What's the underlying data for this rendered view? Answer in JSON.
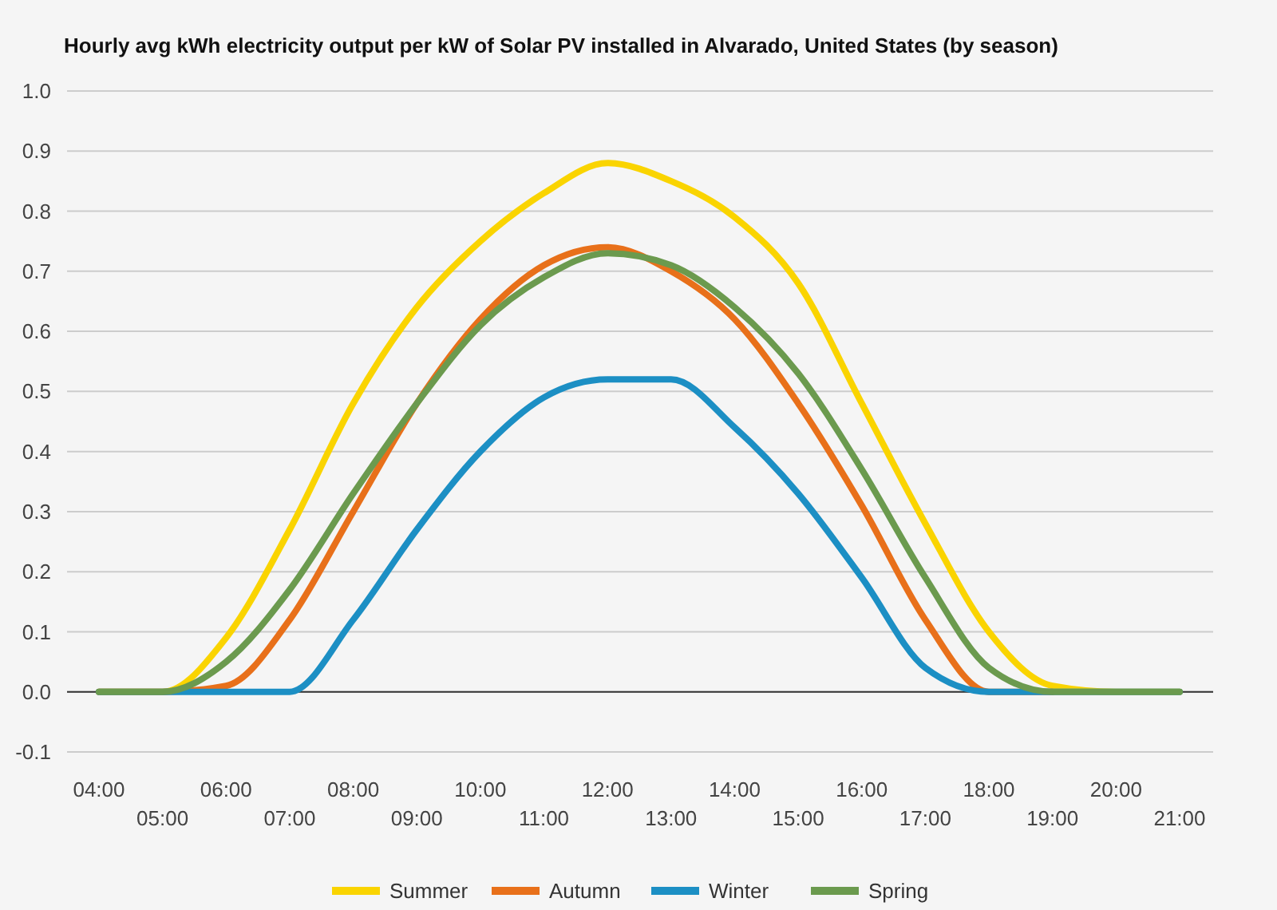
{
  "chart_data": {
    "type": "line",
    "title": "Hourly avg kWh electricity output per kW of Solar PV installed in Alvarado, United States (by season)",
    "categories": [
      "04:00",
      "05:00",
      "06:00",
      "07:00",
      "08:00",
      "09:00",
      "10:00",
      "11:00",
      "12:00",
      "13:00",
      "14:00",
      "15:00",
      "16:00",
      "17:00",
      "18:00",
      "19:00",
      "20:00",
      "21:00"
    ],
    "series": [
      {
        "name": "Summer",
        "color": "#fad400",
        "values": [
          0,
          0,
          0.09,
          0.27,
          0.48,
          0.64,
          0.75,
          0.83,
          0.88,
          0.85,
          0.79,
          0.68,
          0.48,
          0.28,
          0.1,
          0.01,
          0,
          0
        ]
      },
      {
        "name": "Autumn",
        "color": "#e8701a",
        "values": [
          0,
          0,
          0.01,
          0.12,
          0.3,
          0.48,
          0.62,
          0.71,
          0.74,
          0.7,
          0.62,
          0.48,
          0.31,
          0.12,
          0,
          0,
          null,
          null
        ]
      },
      {
        "name": "Winter",
        "color": "#1c8fc4",
        "values": [
          0,
          0,
          0,
          0,
          0.12,
          0.27,
          0.4,
          0.49,
          0.52,
          0.52,
          0.44,
          0.33,
          0.19,
          0.04,
          0,
          0,
          0,
          0
        ]
      },
      {
        "name": "Spring",
        "color": "#6b9a4e",
        "values": [
          0,
          0,
          0.05,
          0.17,
          0.33,
          0.48,
          0.61,
          0.69,
          0.73,
          0.71,
          0.64,
          0.53,
          0.37,
          0.19,
          0.04,
          0,
          0,
          0
        ]
      }
    ],
    "ylim": [
      -0.1,
      1.0
    ],
    "yticks": [
      {
        "value": -0.1,
        "label": "-0.1"
      },
      {
        "value": 0,
        "label": "0.0"
      },
      {
        "value": 0.1,
        "label": "0.1"
      },
      {
        "value": 0.2,
        "label": "0.2"
      },
      {
        "value": 0.3,
        "label": "0.3"
      },
      {
        "value": 0.4,
        "label": "0.4"
      },
      {
        "value": 0.5,
        "label": "0.5"
      },
      {
        "value": 0.6,
        "label": "0.6"
      },
      {
        "value": 0.7,
        "label": "0.7"
      },
      {
        "value": 0.8,
        "label": "0.8"
      },
      {
        "value": 0.9,
        "label": "0.9"
      },
      {
        "value": 1.0,
        "label": "1.0"
      }
    ],
    "ref_lines": [
      {
        "axis": "y",
        "value": 0,
        "color": "#333333"
      }
    ],
    "grid": true,
    "legend": "bottom",
    "marker": "none",
    "line_style": "solid"
  }
}
